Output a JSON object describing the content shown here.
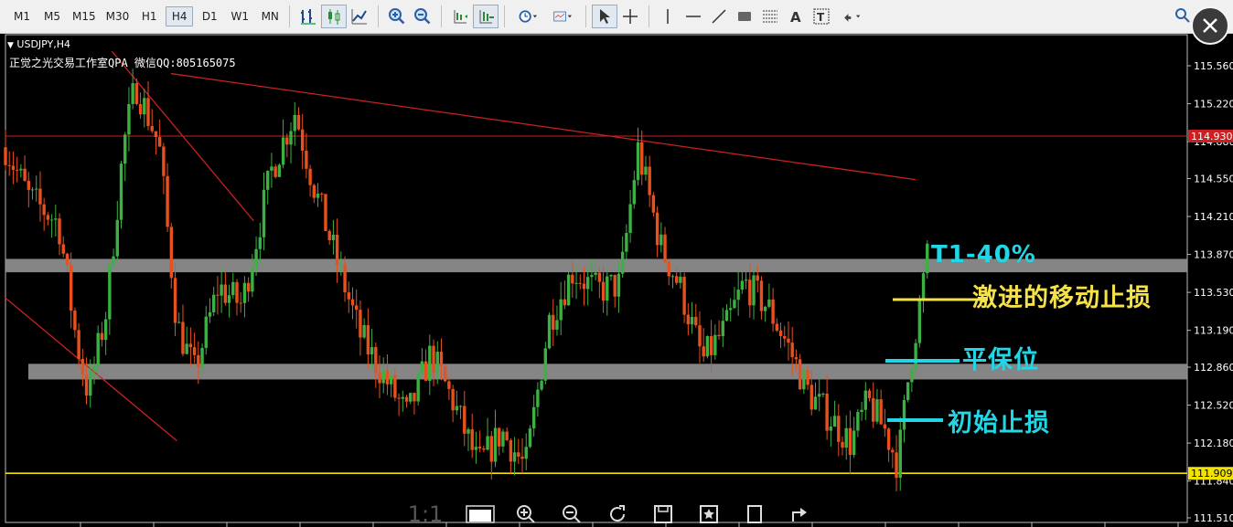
{
  "toolbar": {
    "timeframes": [
      "M1",
      "M5",
      "M15",
      "M30",
      "H1",
      "H4",
      "D1",
      "W1",
      "MN"
    ],
    "active_timeframe": "H4"
  },
  "chart": {
    "symbol": "USDJPY,H4",
    "subtitle": "正觉之光交易工作室QPA 微信QQ:805165075"
  },
  "annotations": {
    "t1": "T1-40%",
    "trailing_stop": "激进的移动止损",
    "breakeven": "平保位",
    "initial_stop": "初始止损"
  },
  "bottom_bar": {
    "ratio": "1:1"
  },
  "colors": {
    "bull": "#3cb043",
    "bear": "#e8501e",
    "resistance": "#cc2020",
    "support_line": "#f2e200",
    "zone": "#8c8c8c",
    "cyan": "#23d6e6",
    "yellow": "#f5e24a"
  },
  "chart_data": {
    "type": "candlestick",
    "ylim": [
      111.51,
      115.69
    ],
    "yticks": [
      "115.560",
      "115.220",
      "114.880",
      "114.550",
      "114.210",
      "113.870",
      "113.530",
      "113.190",
      "112.860",
      "112.520",
      "112.180",
      "111.840",
      "111.510"
    ],
    "price_labels": [
      "114.930",
      "111.909"
    ],
    "horizontal_levels": [
      {
        "price": 114.93,
        "style": "red"
      },
      {
        "price": 111.909,
        "style": "yellow"
      }
    ],
    "zones": [
      {
        "from": 113.71,
        "to": 113.83
      },
      {
        "from": 112.75,
        "to": 112.89
      }
    ],
    "trendlines": [
      {
        "from": [
          0.14,
          115.49
        ],
        "to": [
          0.77,
          114.54
        ]
      },
      {
        "from": [
          0.09,
          115.69
        ],
        "to": [
          0.21,
          114.17
        ]
      },
      {
        "from": [
          0.0,
          113.48
        ],
        "to": [
          0.145,
          112.2
        ]
      }
    ],
    "anchors": [
      [
        0,
        114.83
      ],
      [
        0.02,
        114.38
      ],
      [
        0.045,
        114.15
      ],
      [
        0.06,
        113.1
      ],
      [
        0.07,
        112.62
      ],
      [
        0.085,
        113.35
      ],
      [
        0.1,
        114.85
      ],
      [
        0.11,
        115.4
      ],
      [
        0.13,
        114.85
      ],
      [
        0.145,
        113.25
      ],
      [
        0.16,
        112.82
      ],
      [
        0.18,
        113.58
      ],
      [
        0.2,
        113.42
      ],
      [
        0.225,
        114.62
      ],
      [
        0.245,
        115.15
      ],
      [
        0.26,
        114.52
      ],
      [
        0.28,
        113.82
      ],
      [
        0.3,
        113.15
      ],
      [
        0.32,
        112.78
      ],
      [
        0.34,
        112.42
      ],
      [
        0.36,
        112.98
      ],
      [
        0.38,
        112.52
      ],
      [
        0.4,
        111.98
      ],
      [
        0.42,
        112.28
      ],
      [
        0.44,
        111.96
      ],
      [
        0.46,
        113.28
      ],
      [
        0.48,
        113.72
      ],
      [
        0.5,
        113.55
      ],
      [
        0.52,
        113.6
      ],
      [
        0.535,
        114.82
      ],
      [
        0.555,
        113.92
      ],
      [
        0.57,
        113.6
      ],
      [
        0.59,
        112.92
      ],
      [
        0.61,
        113.22
      ],
      [
        0.625,
        113.62
      ],
      [
        0.645,
        113.4
      ],
      [
        0.66,
        113.1
      ],
      [
        0.68,
        112.62
      ],
      [
        0.7,
        112.38
      ],
      [
        0.715,
        112.18
      ],
      [
        0.73,
        112.55
      ],
      [
        0.745,
        112.28
      ],
      [
        0.755,
        111.99
      ],
      [
        0.765,
        112.85
      ],
      [
        0.78,
        113.85
      ]
    ]
  }
}
